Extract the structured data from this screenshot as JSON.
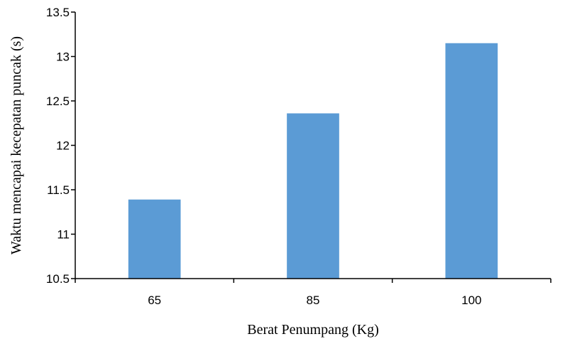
{
  "chart_data": {
    "type": "bar",
    "title": "",
    "xlabel": "Berat Penumpang (Kg)",
    "ylabel": "Waktu mencapai kecepatan puncak (s)",
    "categories": [
      "65",
      "85",
      "100"
    ],
    "values": [
      11.39,
      12.36,
      13.15
    ],
    "ylim": [
      10.5,
      13.5
    ],
    "yticks": [
      "10.5",
      "11",
      "11.5",
      "12",
      "12.5",
      "13",
      "13.5"
    ],
    "grid": false,
    "legend": "none",
    "bar_color": "#5B9BD5",
    "axis_color": "#000000"
  }
}
